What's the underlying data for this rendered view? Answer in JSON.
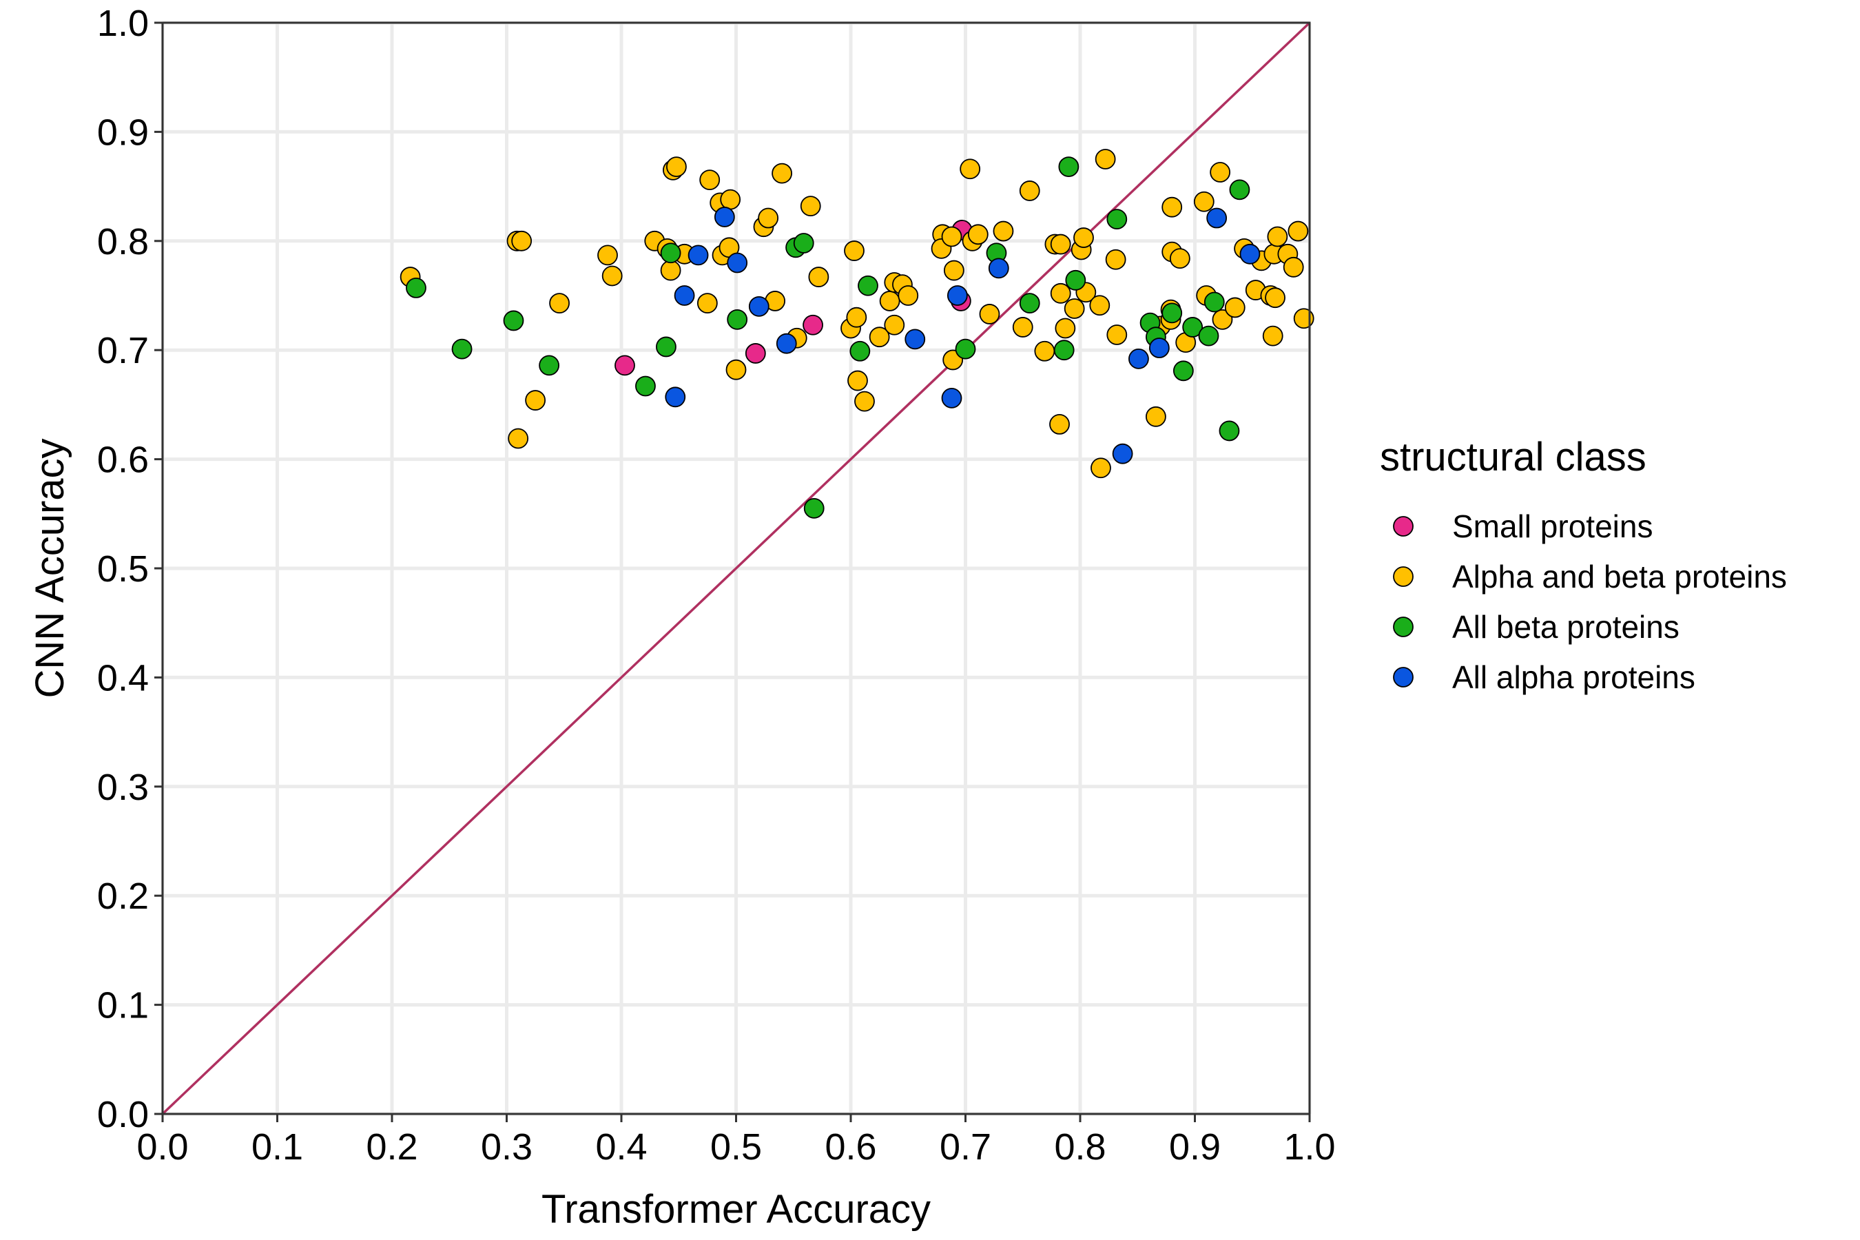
{
  "chart_data": {
    "type": "scatter",
    "xlabel": "Transformer Accuracy",
    "ylabel": "CNN Accuracy",
    "xlim": [
      0,
      1
    ],
    "ylim": [
      0,
      1
    ],
    "x_ticks": [
      "0.0",
      "0.1",
      "0.2",
      "0.3",
      "0.4",
      "0.5",
      "0.6",
      "0.7",
      "0.8",
      "0.9",
      "1.0"
    ],
    "y_ticks": [
      "0.0",
      "0.1",
      "0.2",
      "0.3",
      "0.4",
      "0.5",
      "0.6",
      "0.7",
      "0.8",
      "0.9",
      "1.0"
    ],
    "grid": true,
    "reference_line": {
      "from": [
        0,
        0
      ],
      "to": [
        1,
        1
      ],
      "color": "#b03060"
    },
    "legend": {
      "title": "structural class",
      "position": "right"
    },
    "series": [
      {
        "name": "Small proteins",
        "color": "#e7298a",
        "points": [
          [
            0.697,
            0.81
          ],
          [
            0.696,
            0.745
          ],
          [
            0.567,
            0.723
          ],
          [
            0.403,
            0.686
          ],
          [
            0.517,
            0.697
          ]
        ]
      },
      {
        "name": "Alpha and beta proteins",
        "color": "#ffc000",
        "points": [
          [
            0.216,
            0.767
          ],
          [
            0.309,
            0.8
          ],
          [
            0.313,
            0.8
          ],
          [
            0.346,
            0.743
          ],
          [
            0.325,
            0.654
          ],
          [
            0.31,
            0.619
          ],
          [
            0.388,
            0.787
          ],
          [
            0.392,
            0.768
          ],
          [
            0.429,
            0.8
          ],
          [
            0.44,
            0.793
          ],
          [
            0.443,
            0.773
          ],
          [
            0.445,
            0.865
          ],
          [
            0.448,
            0.868
          ],
          [
            0.455,
            0.788
          ],
          [
            0.475,
            0.743
          ],
          [
            0.477,
            0.856
          ],
          [
            0.486,
            0.835
          ],
          [
            0.488,
            0.787
          ],
          [
            0.495,
            0.838
          ],
          [
            0.494,
            0.794
          ],
          [
            0.5,
            0.682
          ],
          [
            0.524,
            0.813
          ],
          [
            0.528,
            0.821
          ],
          [
            0.534,
            0.745
          ],
          [
            0.54,
            0.862
          ],
          [
            0.553,
            0.711
          ],
          [
            0.565,
            0.832
          ],
          [
            0.572,
            0.767
          ],
          [
            0.6,
            0.72
          ],
          [
            0.605,
            0.73
          ],
          [
            0.603,
            0.791
          ],
          [
            0.606,
            0.672
          ],
          [
            0.612,
            0.653
          ],
          [
            0.625,
            0.712
          ],
          [
            0.634,
            0.745
          ],
          [
            0.638,
            0.723
          ],
          [
            0.638,
            0.762
          ],
          [
            0.645,
            0.76
          ],
          [
            0.65,
            0.75
          ],
          [
            0.68,
            0.806
          ],
          [
            0.679,
            0.793
          ],
          [
            0.688,
            0.804
          ],
          [
            0.69,
            0.773
          ],
          [
            0.689,
            0.691
          ],
          [
            0.704,
            0.866
          ],
          [
            0.706,
            0.8
          ],
          [
            0.711,
            0.806
          ],
          [
            0.721,
            0.733
          ],
          [
            0.733,
            0.809
          ],
          [
            0.75,
            0.721
          ],
          [
            0.756,
            0.846
          ],
          [
            0.769,
            0.699
          ],
          [
            0.778,
            0.797
          ],
          [
            0.782,
            0.632
          ],
          [
            0.783,
            0.797
          ],
          [
            0.783,
            0.752
          ],
          [
            0.787,
            0.72
          ],
          [
            0.795,
            0.738
          ],
          [
            0.801,
            0.792
          ],
          [
            0.803,
            0.803
          ],
          [
            0.805,
            0.753
          ],
          [
            0.817,
            0.741
          ],
          [
            0.822,
            0.875
          ],
          [
            0.818,
            0.592
          ],
          [
            0.831,
            0.783
          ],
          [
            0.832,
            0.714
          ],
          [
            0.866,
            0.639
          ],
          [
            0.87,
            0.722
          ],
          [
            0.88,
            0.831
          ],
          [
            0.88,
            0.79
          ],
          [
            0.879,
            0.737
          ],
          [
            0.879,
            0.728
          ],
          [
            0.887,
            0.784
          ],
          [
            0.892,
            0.707
          ],
          [
            0.908,
            0.836
          ],
          [
            0.91,
            0.75
          ],
          [
            0.922,
            0.863
          ],
          [
            0.924,
            0.728
          ],
          [
            0.935,
            0.739
          ],
          [
            0.943,
            0.793
          ],
          [
            0.953,
            0.755
          ],
          [
            0.958,
            0.782
          ],
          [
            0.966,
            0.75
          ],
          [
            0.968,
            0.713
          ],
          [
            0.969,
            0.788
          ],
          [
            0.97,
            0.748
          ],
          [
            0.972,
            0.804
          ],
          [
            0.981,
            0.788
          ],
          [
            0.986,
            0.776
          ],
          [
            0.99,
            0.809
          ],
          [
            0.995,
            0.729
          ]
        ]
      },
      {
        "name": "All beta proteins",
        "color": "#1aae1a",
        "points": [
          [
            0.221,
            0.757
          ],
          [
            0.261,
            0.701
          ],
          [
            0.306,
            0.727
          ],
          [
            0.337,
            0.686
          ],
          [
            0.421,
            0.667
          ],
          [
            0.439,
            0.703
          ],
          [
            0.443,
            0.789
          ],
          [
            0.501,
            0.728
          ],
          [
            0.552,
            0.794
          ],
          [
            0.559,
            0.798
          ],
          [
            0.568,
            0.555
          ],
          [
            0.608,
            0.699
          ],
          [
            0.615,
            0.759
          ],
          [
            0.7,
            0.701
          ],
          [
            0.727,
            0.789
          ],
          [
            0.756,
            0.743
          ],
          [
            0.786,
            0.7
          ],
          [
            0.79,
            0.868
          ],
          [
            0.796,
            0.764
          ],
          [
            0.832,
            0.82
          ],
          [
            0.861,
            0.725
          ],
          [
            0.866,
            0.712
          ],
          [
            0.88,
            0.734
          ],
          [
            0.89,
            0.681
          ],
          [
            0.898,
            0.721
          ],
          [
            0.912,
            0.713
          ],
          [
            0.917,
            0.744
          ],
          [
            0.93,
            0.626
          ],
          [
            0.939,
            0.847
          ]
        ]
      },
      {
        "name": "All alpha proteins",
        "color": "#0a56e0",
        "points": [
          [
            0.447,
            0.657
          ],
          [
            0.455,
            0.75
          ],
          [
            0.467,
            0.787
          ],
          [
            0.49,
            0.822
          ],
          [
            0.501,
            0.78
          ],
          [
            0.52,
            0.74
          ],
          [
            0.544,
            0.706
          ],
          [
            0.656,
            0.71
          ],
          [
            0.688,
            0.656
          ],
          [
            0.693,
            0.75
          ],
          [
            0.729,
            0.775
          ],
          [
            0.837,
            0.605
          ],
          [
            0.851,
            0.692
          ],
          [
            0.869,
            0.702
          ],
          [
            0.919,
            0.821
          ],
          [
            0.948,
            0.788
          ]
        ]
      }
    ]
  }
}
